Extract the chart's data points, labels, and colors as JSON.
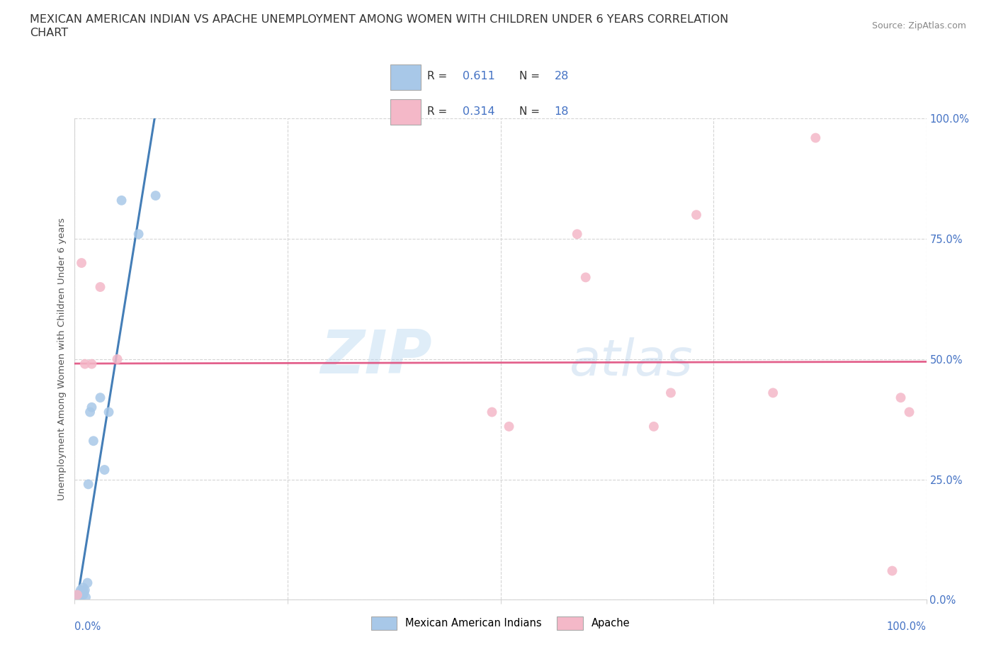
{
  "title_line1": "MEXICAN AMERICAN INDIAN VS APACHE UNEMPLOYMENT AMONG WOMEN WITH CHILDREN UNDER 6 YEARS CORRELATION",
  "title_line2": "CHART",
  "source_text": "Source: ZipAtlas.com",
  "ylabel": "Unemployment Among Women with Children Under 6 years",
  "xlim": [
    0,
    1
  ],
  "ylim": [
    0,
    1
  ],
  "yticks": [
    0.0,
    0.25,
    0.5,
    0.75,
    1.0
  ],
  "ytick_labels": [
    "0.0%",
    "25.0%",
    "50.0%",
    "75.0%",
    "100.0%"
  ],
  "watermark_zip": "ZIP",
  "watermark_atlas": "atlas",
  "blue_dot_color": "#a8c8e8",
  "pink_dot_color": "#f4b8c8",
  "trend_blue_color": "#3070b0",
  "trend_pink_color": "#e05080",
  "R_blue": 0.611,
  "N_blue": 28,
  "R_pink": 0.314,
  "N_pink": 18,
  "legend_blue_label": "Mexican American Indians",
  "legend_pink_label": "Apache",
  "blue_x": [
    0.002,
    0.003,
    0.004,
    0.005,
    0.005,
    0.006,
    0.006,
    0.007,
    0.007,
    0.008,
    0.008,
    0.009,
    0.01,
    0.01,
    0.011,
    0.012,
    0.013,
    0.015,
    0.016,
    0.018,
    0.02,
    0.022,
    0.03,
    0.035,
    0.04,
    0.055,
    0.075,
    0.095
  ],
  "blue_y": [
    0.002,
    0.003,
    0.005,
    0.008,
    0.01,
    0.005,
    0.015,
    0.005,
    0.02,
    0.01,
    0.018,
    0.015,
    0.01,
    0.025,
    0.015,
    0.02,
    0.005,
    0.035,
    0.24,
    0.39,
    0.4,
    0.33,
    0.42,
    0.27,
    0.39,
    0.83,
    0.76,
    0.84
  ],
  "pink_x": [
    0.003,
    0.008,
    0.012,
    0.02,
    0.03,
    0.05,
    0.49,
    0.51,
    0.59,
    0.6,
    0.68,
    0.7,
    0.73,
    0.82,
    0.87,
    0.96,
    0.97,
    0.98
  ],
  "pink_y": [
    0.01,
    0.7,
    0.49,
    0.49,
    0.65,
    0.5,
    0.39,
    0.36,
    0.76,
    0.67,
    0.36,
    0.43,
    0.8,
    0.43,
    0.96,
    0.06,
    0.42,
    0.39
  ],
  "background_color": "#ffffff",
  "grid_color": "#d5d5d5",
  "title_color": "#333333",
  "source_color": "#888888",
  "axis_number_color": "#4472c4",
  "title_fontsize": 11.5,
  "axis_label_fontsize": 9.5,
  "tick_fontsize": 10.5,
  "legend_fontsize": 10.5,
  "dot_size": 100
}
